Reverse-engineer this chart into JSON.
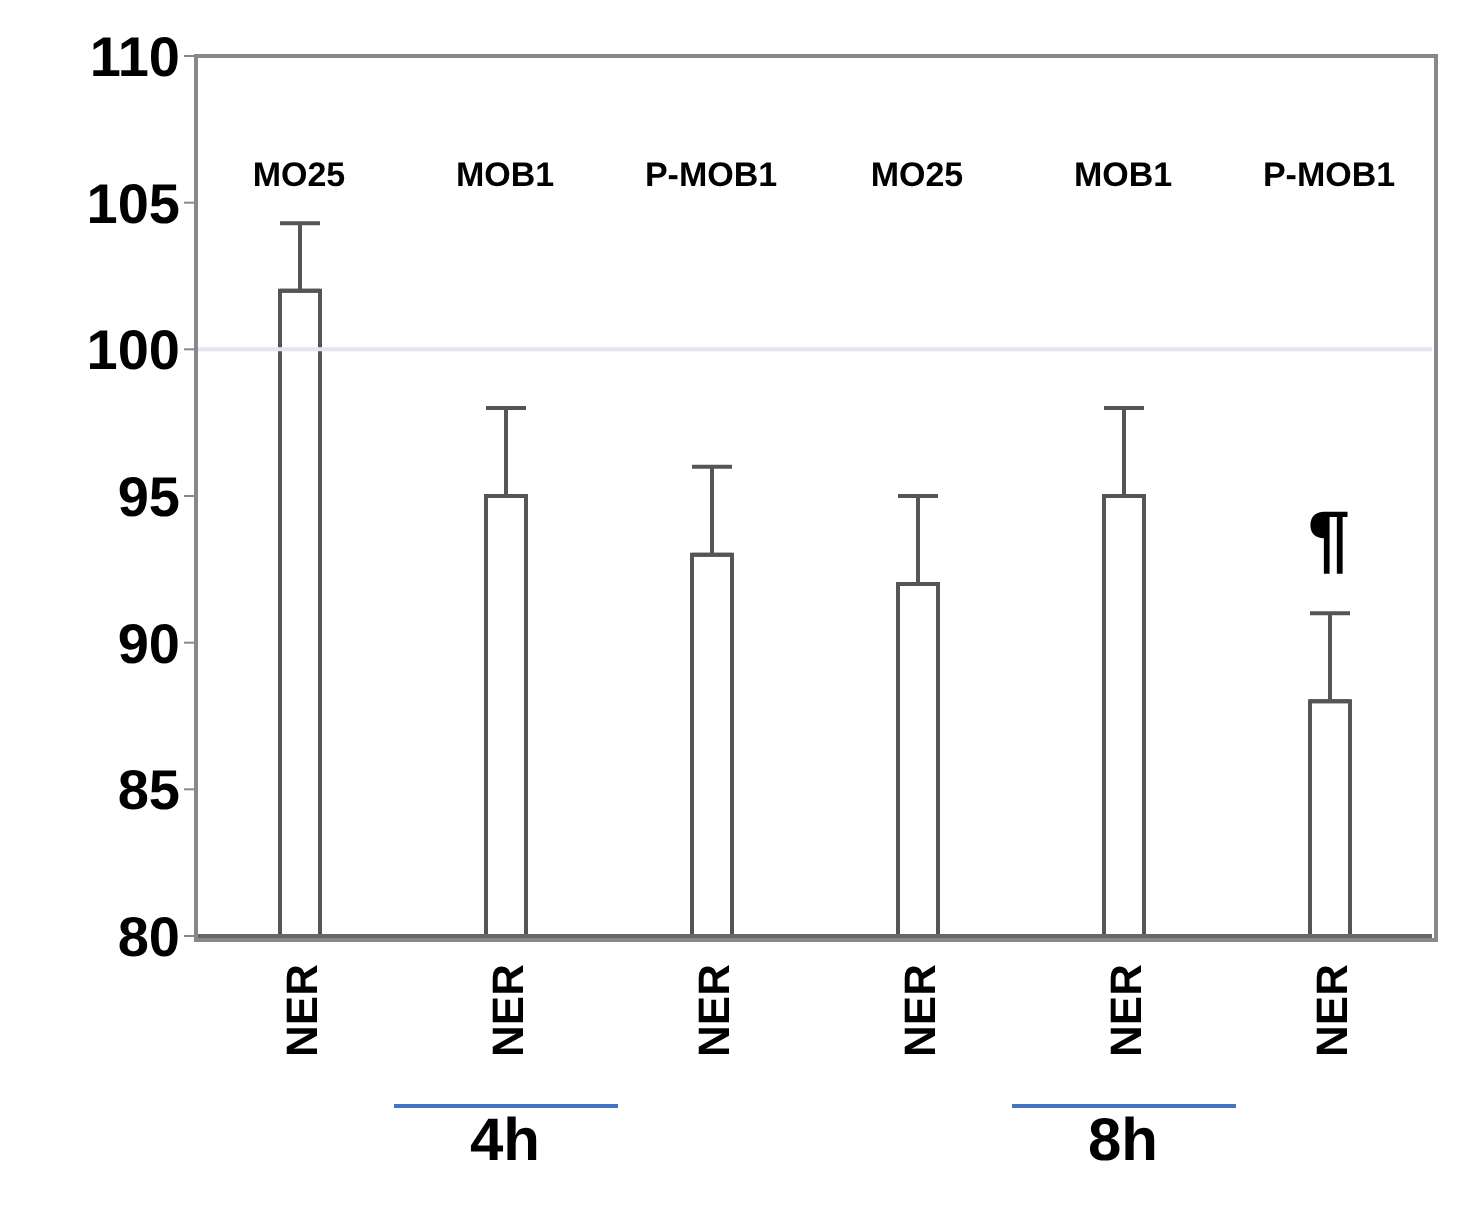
{
  "chart_data": {
    "type": "bar",
    "categories": [
      "NER",
      "NER",
      "NER",
      "NER",
      "NER",
      "NER"
    ],
    "values": [
      102,
      95,
      93,
      92,
      95,
      88
    ],
    "errors": [
      [
        102,
        104.3
      ],
      [
        95,
        98
      ],
      [
        93,
        96
      ],
      [
        92,
        95
      ],
      [
        95,
        98
      ],
      [
        88,
        91
      ]
    ],
    "color": "#ffffff",
    "ylim": [
      80,
      110
    ],
    "yticks": [
      80,
      85,
      90,
      95,
      100,
      105,
      110
    ],
    "ref_lines": [
      {
        "axis": "y",
        "value": 100,
        "color": "#e4e4f2"
      }
    ],
    "annotations": [
      "MO25",
      "MOB1",
      "P-MOB1",
      "MO25",
      "MOB1",
      "P-MOB1",
      "¶",
      "4h",
      "8h"
    ]
  }
}
